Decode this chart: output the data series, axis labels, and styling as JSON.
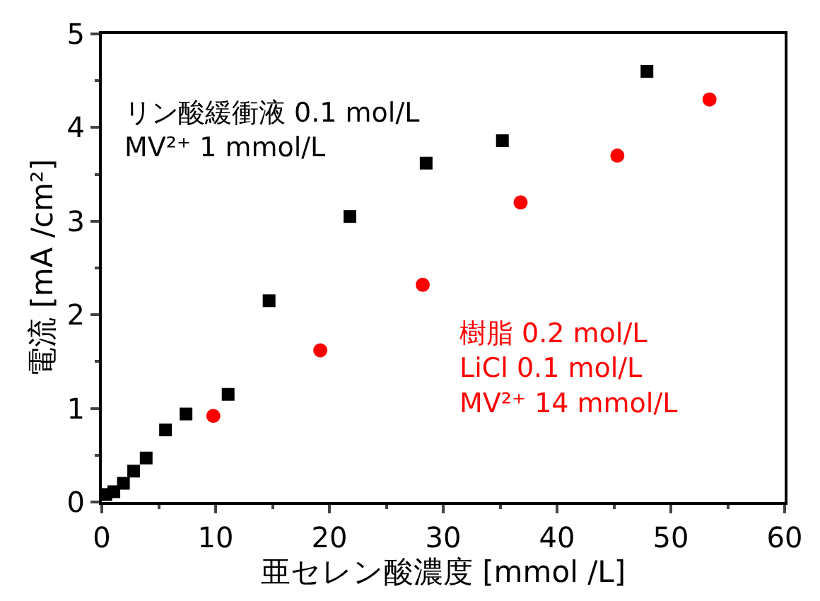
{
  "chart_data": {
    "type": "scatter",
    "xlabel": "亜セレン酸濃度 [mmol /L]",
    "ylabel": "電流 [mA /cm²]",
    "xlim": [
      0,
      60
    ],
    "ylim": [
      0,
      5
    ],
    "xticks": [
      0,
      10,
      20,
      30,
      40,
      50,
      60
    ],
    "yticks": [
      0,
      1,
      2,
      3,
      4,
      5
    ],
    "series": [
      {
        "color": "#000000",
        "marker": "square",
        "x": [
          0.35,
          1.06,
          1.9,
          2.8,
          3.9,
          5.6,
          7.4,
          11.1,
          14.7,
          21.8,
          28.5,
          35.2,
          47.9
        ],
        "values": [
          0.08,
          0.11,
          0.2,
          0.33,
          0.47,
          0.77,
          0.94,
          1.15,
          2.15,
          3.05,
          3.62,
          3.86,
          4.6
        ]
      },
      {
        "color": "#ff0000",
        "marker": "circle",
        "x": [
          9.8,
          19.2,
          28.2,
          36.8,
          45.3,
          53.4
        ],
        "values": [
          0.92,
          1.62,
          2.32,
          3.2,
          3.7,
          4.3
        ]
      }
    ],
    "annotations": [
      "リン酸緩衝液 0.1 mol/L\nMV²⁺ 1 mmol/L",
      "樹脂 0.2 mol/L\nLiCl 0.1 mol/L\nMV²⁺ 14 mmol/L"
    ]
  }
}
